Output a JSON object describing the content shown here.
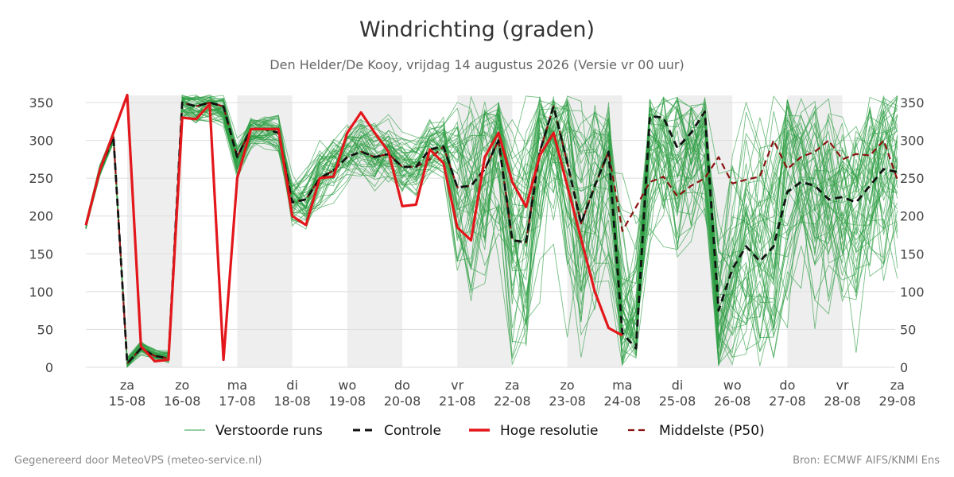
{
  "header": {
    "title": "Windrichting (graden)",
    "subtitle": "Den Helder/De Kooy, vrijdag 14 augustus 2026 (Versie vr 00 uur)"
  },
  "footer": {
    "left": "Gegenereerd door MeteoVPS (meteo-service.nl)",
    "right": "Bron: ECMWF AIFS/KNMI Ens"
  },
  "colors": {
    "ensemble": "#2e9e44",
    "control": "#111111",
    "hires": "#e3171b",
    "median": "#8b1010",
    "night_band": "#eeeeee",
    "grid": "#dddddd"
  },
  "chart_data": {
    "type": "line",
    "title": "Windrichting (graden)",
    "ylim": [
      0,
      360
    ],
    "yticks": [
      0,
      50,
      100,
      150,
      200,
      250,
      300,
      350
    ],
    "xlim_days": [
      -0.7,
      14.0
    ],
    "xticks": [
      {
        "day": "za",
        "date": "15-08",
        "pos": 0
      },
      {
        "day": "zo",
        "date": "16-08",
        "pos": 1
      },
      {
        "day": "ma",
        "date": "17-08",
        "pos": 2
      },
      {
        "day": "di",
        "date": "18-08",
        "pos": 3
      },
      {
        "day": "wo",
        "date": "19-08",
        "pos": 4
      },
      {
        "day": "do",
        "date": "20-08",
        "pos": 5
      },
      {
        "day": "vr",
        "date": "21-08",
        "pos": 6
      },
      {
        "day": "za",
        "date": "22-08",
        "pos": 7
      },
      {
        "day": "zo",
        "date": "23-08",
        "pos": 8
      },
      {
        "day": "ma",
        "date": "24-08",
        "pos": 9
      },
      {
        "day": "di",
        "date": "25-08",
        "pos": 10
      },
      {
        "day": "wo",
        "date": "26-08",
        "pos": 11
      },
      {
        "day": "do",
        "date": "27-08",
        "pos": 12
      },
      {
        "day": "vr",
        "date": "28-08",
        "pos": 13
      },
      {
        "day": "za",
        "date": "29-08",
        "pos": 14
      }
    ],
    "weekend_bands": [
      [
        0,
        1
      ],
      [
        2,
        3
      ],
      [
        4,
        5
      ],
      [
        6,
        7
      ],
      [
        8,
        9
      ],
      [
        10,
        11
      ],
      [
        12,
        13
      ]
    ],
    "legend": [
      {
        "key": "ensemble",
        "label": "Verstoorde runs",
        "style": "thin"
      },
      {
        "key": "control",
        "label": "Controle",
        "style": "dashed"
      },
      {
        "key": "hires",
        "label": "Hoge resolutie",
        "style": "solid"
      },
      {
        "key": "median",
        "label": "Middelste (P50)",
        "style": "dashed-thin"
      }
    ],
    "ensemble_count": 50,
    "series": [
      {
        "key": "hires",
        "x": [
          -0.75,
          -0.5,
          -0.25,
          0.0,
          0.25,
          0.5,
          0.75,
          1.0,
          1.25,
          1.5,
          1.75,
          2.0,
          2.25,
          2.5,
          2.75,
          3.0,
          3.25,
          3.5,
          3.75,
          4.0,
          4.25,
          4.5,
          4.75,
          5.0,
          5.25,
          5.5,
          5.75,
          6.0,
          6.25,
          6.5,
          6.75,
          7.0,
          7.25,
          7.5,
          7.75,
          8.0,
          8.25,
          8.5,
          8.75,
          9.0
        ],
        "values": [
          188,
          260,
          310,
          360,
          28,
          8,
          10,
          330,
          328,
          348,
          10,
          250,
          315,
          315,
          315,
          200,
          188,
          250,
          252,
          310,
          337,
          310,
          285,
          213,
          215,
          288,
          270,
          185,
          168,
          278,
          310,
          245,
          212,
          280,
          310,
          240,
          170,
          100,
          52,
          42
        ]
      },
      {
        "key": "control",
        "x": [
          -0.75,
          -0.5,
          -0.25,
          0.0,
          0.25,
          0.5,
          0.75,
          1.0,
          1.25,
          1.5,
          1.75,
          2.0,
          2.25,
          2.5,
          2.75,
          3.0,
          3.25,
          3.5,
          3.75,
          4.0,
          4.25,
          4.5,
          4.75,
          5.0,
          5.25,
          5.5,
          5.75,
          6.0,
          6.25,
          6.5,
          6.75,
          7.0,
          7.25,
          7.5,
          7.75,
          8.0,
          8.25,
          8.5,
          8.75,
          9.0,
          9.25,
          9.5,
          9.75,
          10.0,
          10.25,
          10.5,
          10.75,
          11.0,
          11.25,
          11.5,
          11.75,
          12.0,
          12.25,
          12.5,
          12.75,
          13.0,
          13.25,
          13.5,
          13.75,
          14.0
        ],
        "values": [
          188,
          260,
          305,
          5,
          25,
          15,
          12,
          350,
          345,
          350,
          345,
          278,
          315,
          315,
          310,
          218,
          222,
          250,
          260,
          278,
          285,
          278,
          282,
          265,
          265,
          288,
          292,
          238,
          240,
          262,
          300,
          168,
          165,
          285,
          345,
          270,
          190,
          240,
          285,
          45,
          25,
          332,
          330,
          290,
          310,
          338,
          75,
          130,
          160,
          140,
          160,
          232,
          245,
          240,
          222,
          225,
          218,
          240,
          262,
          258
        ]
      },
      {
        "key": "median",
        "x": [
          -0.75,
          -0.5,
          -0.25,
          0.0,
          0.25,
          0.5,
          0.75,
          1.0,
          1.25,
          1.5,
          1.75,
          2.0,
          2.25,
          2.5,
          2.75,
          3.0,
          3.25,
          3.5,
          3.75,
          4.0,
          4.25,
          4.5,
          4.75,
          5.0,
          5.25,
          5.5,
          5.75,
          6.0,
          6.25,
          6.5,
          6.75,
          7.0,
          7.25,
          7.5,
          7.75,
          8.0,
          8.25,
          8.5,
          8.75,
          9.0,
          9.25,
          9.5,
          9.75,
          10.0,
          10.25,
          10.5,
          10.75,
          11.0,
          11.25,
          11.5,
          11.75,
          12.0,
          12.25,
          12.5,
          12.75,
          13.0,
          13.25,
          13.5,
          13.75,
          14.0
        ],
        "values": [
          188,
          260,
          305,
          5,
          25,
          15,
          12,
          350,
          345,
          350,
          345,
          278,
          315,
          315,
          310,
          218,
          222,
          250,
          260,
          278,
          285,
          278,
          282,
          265,
          265,
          275,
          292,
          238,
          240,
          262,
          300,
          168,
          165,
          285,
          345,
          270,
          190,
          240,
          285,
          180,
          212,
          245,
          252,
          226,
          240,
          250,
          278,
          243,
          248,
          252,
          300,
          262,
          278,
          285,
          300,
          275,
          282,
          280,
          300,
          248
        ]
      }
    ]
  }
}
